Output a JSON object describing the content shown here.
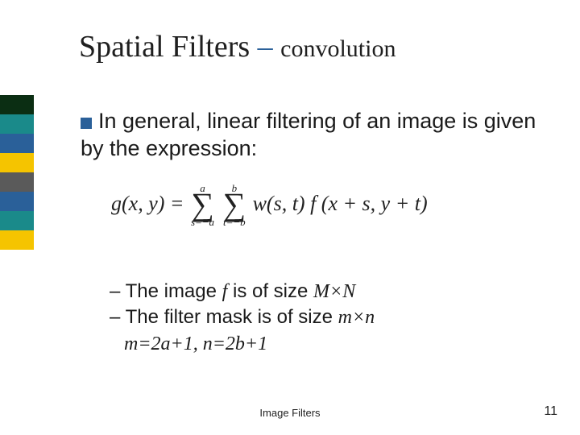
{
  "sidebar": {
    "colors": [
      "#0b2e13",
      "#1a8a8a",
      "#2a6099",
      "#f5c400",
      "#5a5a5a",
      "#2a6099",
      "#1a8a8a",
      "#f5c400"
    ]
  },
  "title": {
    "main": "Spatial Filters ",
    "dash": "– ",
    "sub": "convolution"
  },
  "bullet": {
    "text_prefix": "In general, linear filtering of an image is given by the expression:"
  },
  "formula": {
    "lhs": "g(x, y) = ",
    "sum1_top": "a",
    "sum1_bot": "s=−a",
    "sum2_top": "b",
    "sum2_bot": "t=−b",
    "rhs": "w(s, t) f (x + s, y + t)"
  },
  "sub": {
    "line1_a": "– The image ",
    "line1_f": "f",
    "line1_b": " is of size ",
    "line1_mn": "M×N",
    "line2_a": "– The filter mask is of size ",
    "line2_mn": "m×n",
    "line3": "m=2a+1, n=2b+1"
  },
  "footer": {
    "label": "Image Filters",
    "page": "11"
  }
}
